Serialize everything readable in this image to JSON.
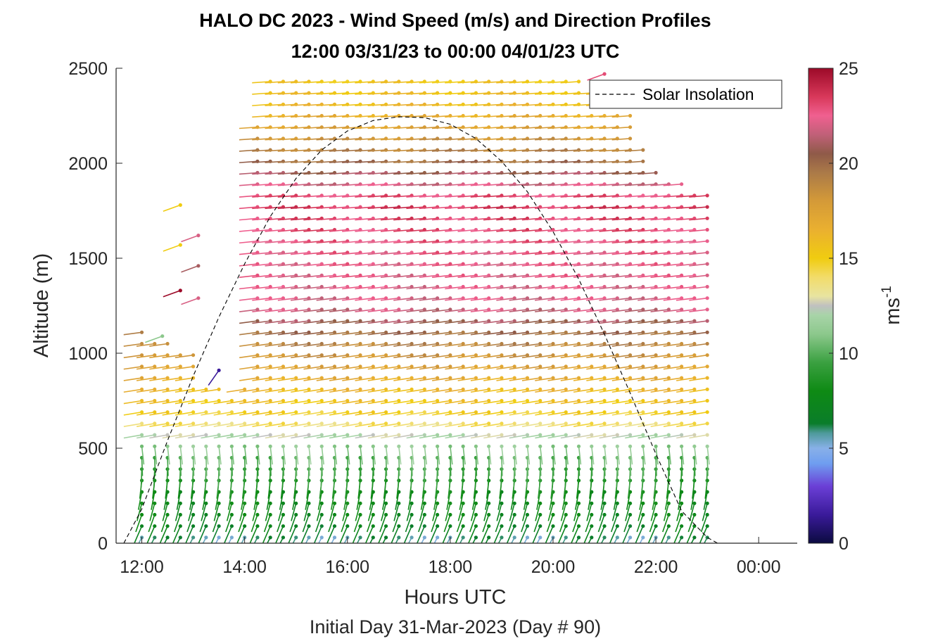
{
  "chart_data": {
    "type": "scatter",
    "title": "HALO DC 2023 - Wind Speed (m/s) and Direction Profiles",
    "subtitle": "12:00 03/31/23 to 00:00 04/01/23  UTC",
    "xlabel": "Hours UTC",
    "x_sublabel": "Initial Day 31-Mar-2023 (Day # 90)",
    "ylabel": "Altitude (m)",
    "xlim": [
      11.5,
      24.75
    ],
    "ylim": [
      0,
      2500
    ],
    "x_ticks": [
      12,
      14,
      16,
      18,
      20,
      22,
      24
    ],
    "x_tick_labels": [
      "12:00",
      "14:00",
      "16:00",
      "18:00",
      "20:00",
      "22:00",
      "00:00"
    ],
    "y_ticks": [
      0,
      500,
      1000,
      1500,
      2000,
      2500
    ],
    "y_tick_labels": [
      "0",
      "500",
      "1000",
      "1500",
      "2000",
      "2500"
    ],
    "colorbar": {
      "label": "ms",
      "label_superscript": "-1",
      "range": [
        0,
        25
      ],
      "ticks": [
        0,
        5,
        10,
        15,
        20,
        25
      ],
      "tick_labels": [
        "0",
        "5",
        "10",
        "15",
        "20",
        "25"
      ],
      "colormap": [
        [
          0,
          "#0b0b40"
        ],
        [
          1.5,
          "#3a1a9a"
        ],
        [
          3,
          "#6b3fd6"
        ],
        [
          4.2,
          "#6f9ef0"
        ],
        [
          5,
          "#88b0e8"
        ],
        [
          5.8,
          "#4d9a9a"
        ],
        [
          6.3,
          "#0a7d2a"
        ],
        [
          8,
          "#0e8a14"
        ],
        [
          9.5,
          "#3aa040"
        ],
        [
          11,
          "#8cc88c"
        ],
        [
          12,
          "#a8d4a8"
        ],
        [
          12.5,
          "#c0c0c0"
        ],
        [
          13,
          "#e8e4a0"
        ],
        [
          14,
          "#f2dc6a"
        ],
        [
          15,
          "#f0cc10"
        ],
        [
          16.5,
          "#eab030"
        ],
        [
          18,
          "#d49a38"
        ],
        [
          19.5,
          "#ab7a48"
        ],
        [
          20.5,
          "#8f5a48"
        ],
        [
          21.5,
          "#c06078"
        ],
        [
          22.5,
          "#f06090"
        ],
        [
          23.5,
          "#d8385a"
        ],
        [
          25,
          "#9c0a28"
        ]
      ]
    },
    "annotations": {
      "legend_entry": "Solar Insolation",
      "legend_placement": "top-right"
    },
    "solar_insolation": {
      "name": "Solar Insolation",
      "style": "dashed",
      "x": [
        11.65,
        12.0,
        12.5,
        13.0,
        13.5,
        14.0,
        14.5,
        15.0,
        15.5,
        16.0,
        16.5,
        17.0,
        17.5,
        18.0,
        18.5,
        19.0,
        19.5,
        20.0,
        20.5,
        21.0,
        21.5,
        22.0,
        22.5,
        23.0,
        23.2,
        24.75
      ],
      "y": [
        0,
        180,
        540,
        880,
        1190,
        1470,
        1720,
        1920,
        2070,
        2170,
        2225,
        2245,
        2240,
        2205,
        2130,
        2010,
        1850,
        1640,
        1390,
        1100,
        790,
        470,
        170,
        30,
        0,
        0
      ]
    },
    "barb_profiles": {
      "description_units": "x in hours UTC, altitude in m, speed in m/s, direction in degrees (from)",
      "time_start": 12.0,
      "time_end": 23.0,
      "time_step": 0.25,
      "alt_step": 60,
      "top_altitude_by_time": [
        [
          12.0,
          1110
        ],
        [
          12.25,
          1090
        ],
        [
          12.5,
          1050
        ],
        [
          12.75,
          1000
        ],
        [
          13.0,
          1000
        ],
        [
          13.25,
          840
        ],
        [
          13.5,
          820
        ],
        [
          13.75,
          800
        ],
        [
          14.0,
          840
        ],
        [
          14.25,
          2240
        ],
        [
          14.5,
          2470
        ],
        [
          19.25,
          2470
        ],
        [
          20.0,
          2450
        ],
        [
          20.5,
          2450
        ],
        [
          21.0,
          2400
        ],
        [
          21.5,
          2300
        ],
        [
          21.75,
          2080
        ],
        [
          22.0,
          2000
        ],
        [
          22.25,
          1940
        ],
        [
          22.5,
          1900
        ],
        [
          22.75,
          1830
        ],
        [
          23.0,
          1830
        ]
      ],
      "speed_layers": [
        [
          0,
          5
        ],
        [
          60,
          6.5
        ],
        [
          150,
          7.5
        ],
        [
          300,
          8
        ],
        [
          450,
          10
        ],
        [
          560,
          12
        ],
        [
          650,
          14.5
        ],
        [
          850,
          16.5
        ],
        [
          1050,
          19
        ],
        [
          1250,
          22
        ],
        [
          1500,
          22.5
        ],
        [
          1800,
          23.5
        ],
        [
          2000,
          20
        ],
        [
          2300,
          16
        ],
        [
          2500,
          15
        ]
      ],
      "isolated_barbs": [
        {
          "x": 12.75,
          "alt": 1780,
          "speed": 15
        },
        {
          "x": 12.75,
          "alt": 1570,
          "speed": 15
        },
        {
          "x": 13.1,
          "alt": 1620,
          "speed": 22
        },
        {
          "x": 13.1,
          "alt": 1460,
          "speed": 21
        },
        {
          "x": 12.75,
          "alt": 1330,
          "speed": 25
        },
        {
          "x": 13.1,
          "alt": 1290,
          "speed": 22
        },
        {
          "x": 13.5,
          "alt": 910,
          "speed": 1.5
        },
        {
          "x": 12.4,
          "alt": 1090,
          "speed": 11
        },
        {
          "x": 21.0,
          "alt": 2470,
          "speed": 23
        }
      ]
    }
  }
}
